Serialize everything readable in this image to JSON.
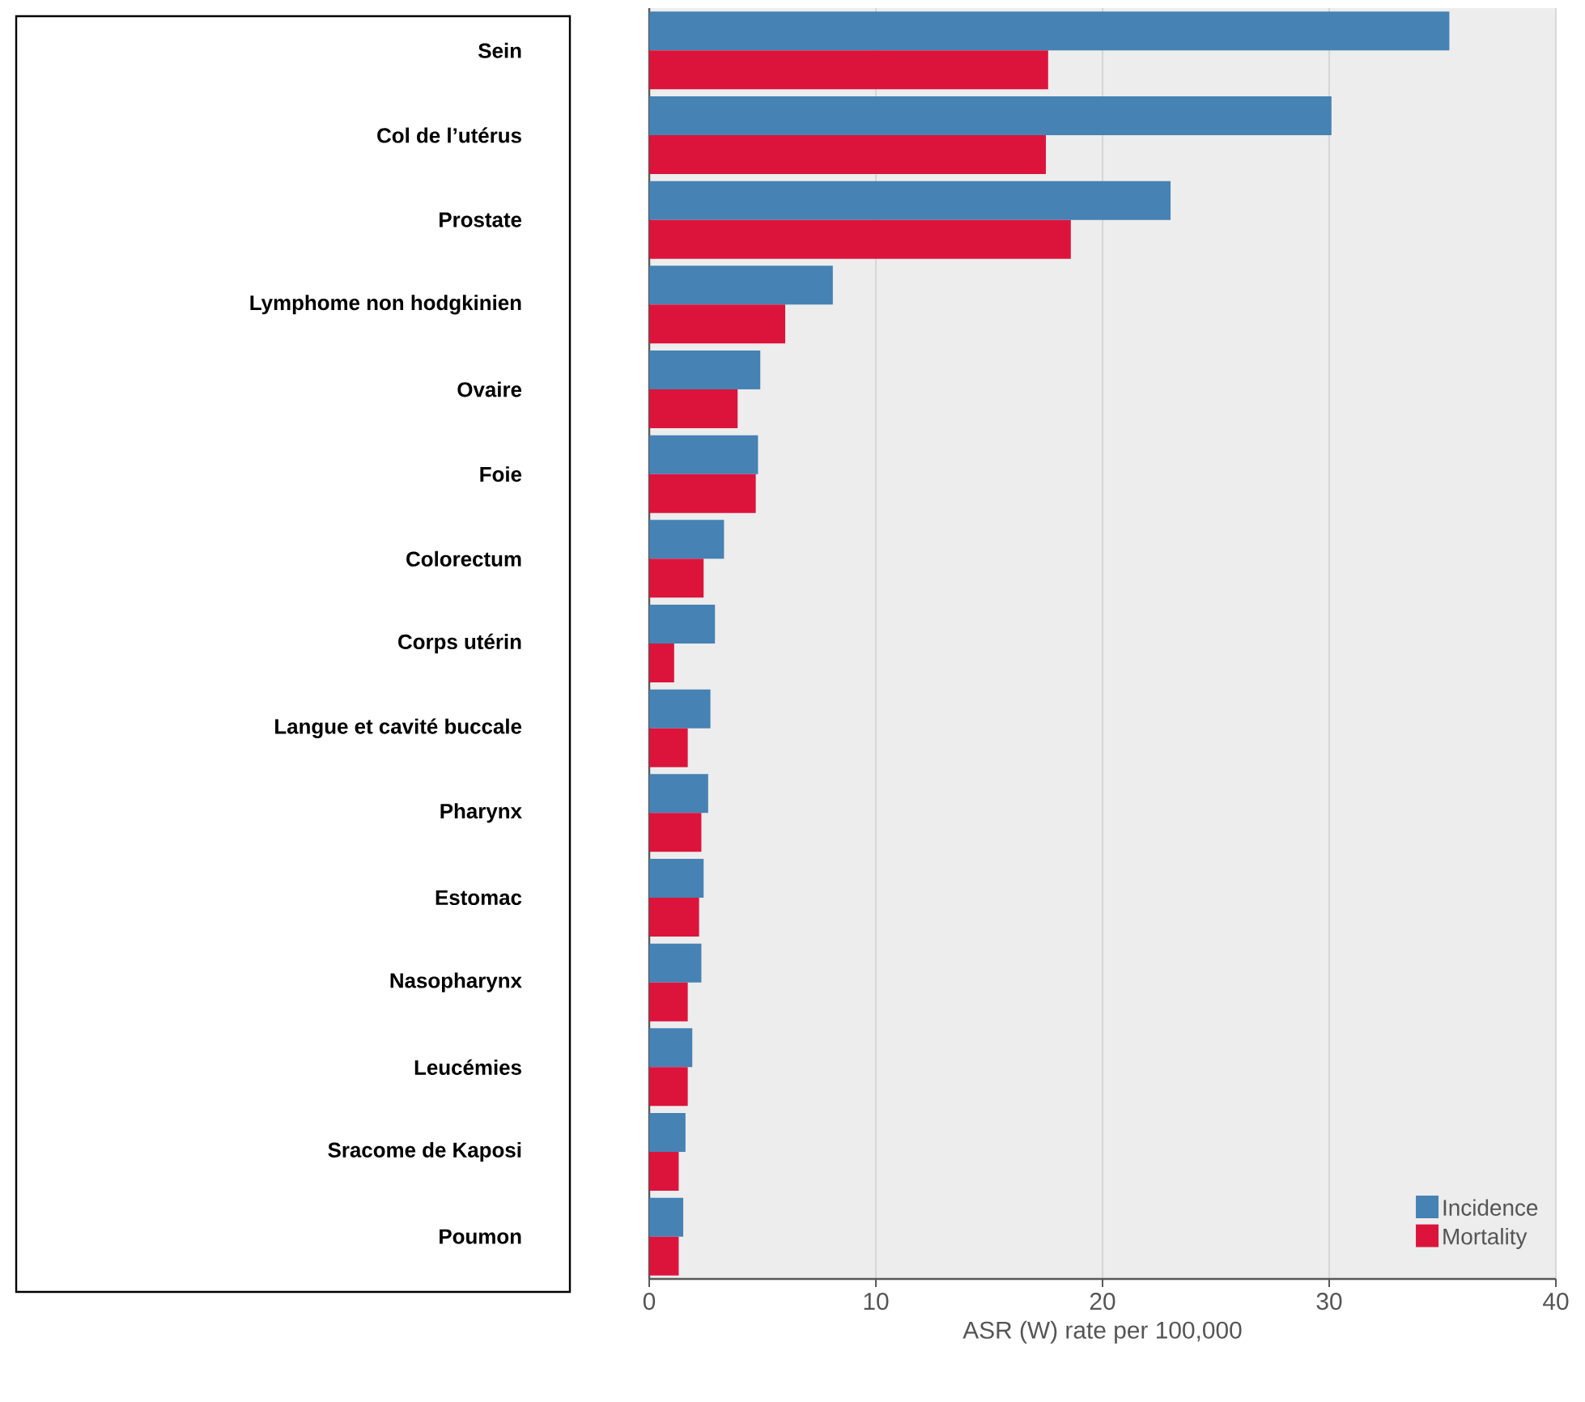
{
  "chart_data": {
    "type": "bar",
    "orientation": "horizontal",
    "categories": [
      "Sein",
      "Col de l’utérus",
      "Prostate",
      "Lymphome non hodgkinien",
      "Ovaire",
      "Foie",
      "Colorectum",
      "Corps utérin",
      "Langue et cavité buccale",
      "Pharynx",
      "Estomac",
      "Nasopharynx",
      "Leucémies",
      "Sracome de Kaposi",
      "Poumon"
    ],
    "series": [
      {
        "name": "Incidence",
        "color": "#4682b4",
        "values": [
          35.3,
          30.1,
          23.0,
          8.1,
          4.9,
          4.8,
          3.3,
          2.9,
          2.7,
          2.6,
          2.4,
          2.3,
          1.9,
          1.6,
          1.5
        ]
      },
      {
        "name": "Mortality",
        "color": "#dc143c",
        "values": [
          17.6,
          17.5,
          18.6,
          6.0,
          3.9,
          4.7,
          2.4,
          1.1,
          1.7,
          2.3,
          2.2,
          1.7,
          1.7,
          1.3,
          1.3
        ]
      }
    ],
    "xlabel": "ASR (W) rate per 100,000",
    "xlim": [
      0,
      40
    ],
    "xticks": [
      0,
      10,
      20,
      30,
      40
    ],
    "grid": "x",
    "legend": "bottom right"
  }
}
